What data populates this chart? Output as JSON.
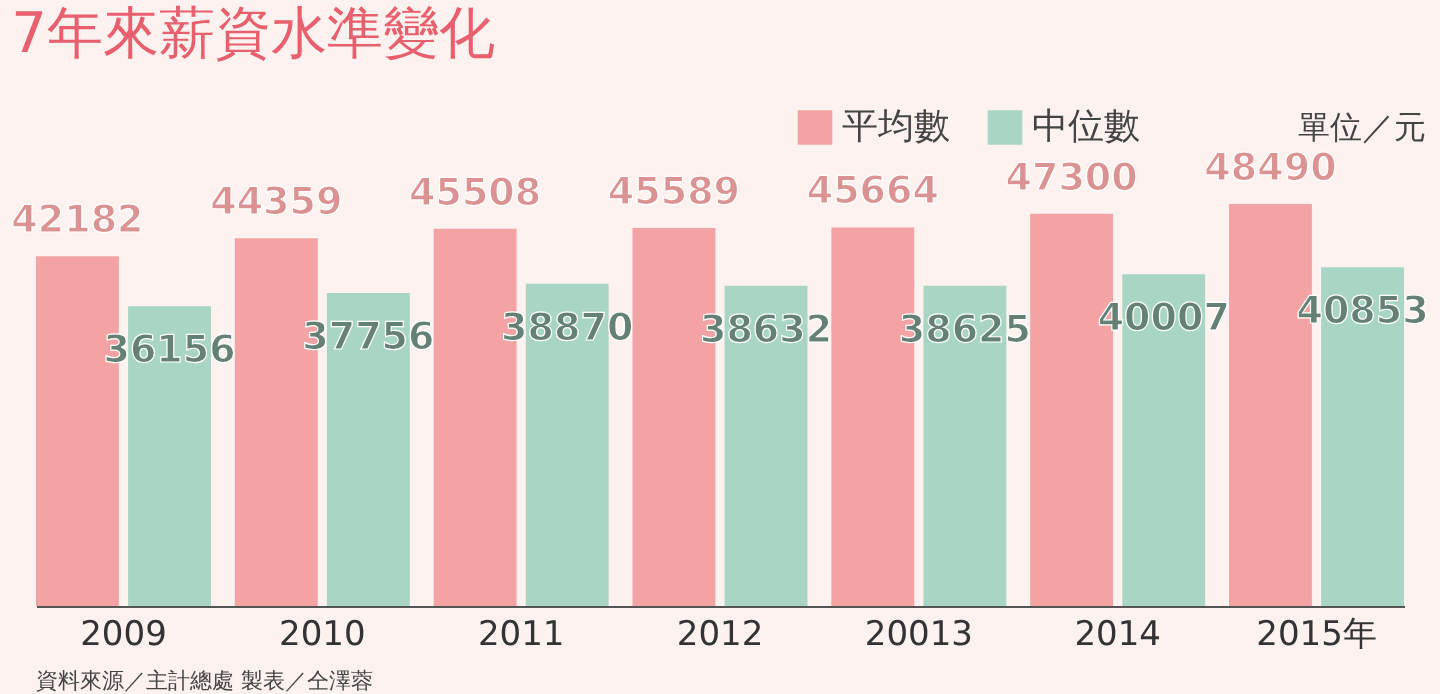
{
  "chart_data": {
    "type": "bar",
    "title": "7年來薪資水準變化",
    "categories": [
      "2009",
      "2010",
      "2011",
      "2012",
      "20013",
      "2014",
      "2015年"
    ],
    "series": [
      {
        "name": "平均數",
        "color": "#f4a3a4",
        "values": [
          42182,
          44359,
          45508,
          45589,
          45664,
          47300,
          48490
        ]
      },
      {
        "name": "中位數",
        "color": "#a9d6c4",
        "values": [
          36156,
          37756,
          38870,
          38632,
          38625,
          40007,
          40853
        ]
      }
    ],
    "data_labels": true,
    "legend": "top right",
    "annotations": [
      "單位／元",
      "資料來源／主計總處 製表／仝澤蓉"
    ]
  }
}
